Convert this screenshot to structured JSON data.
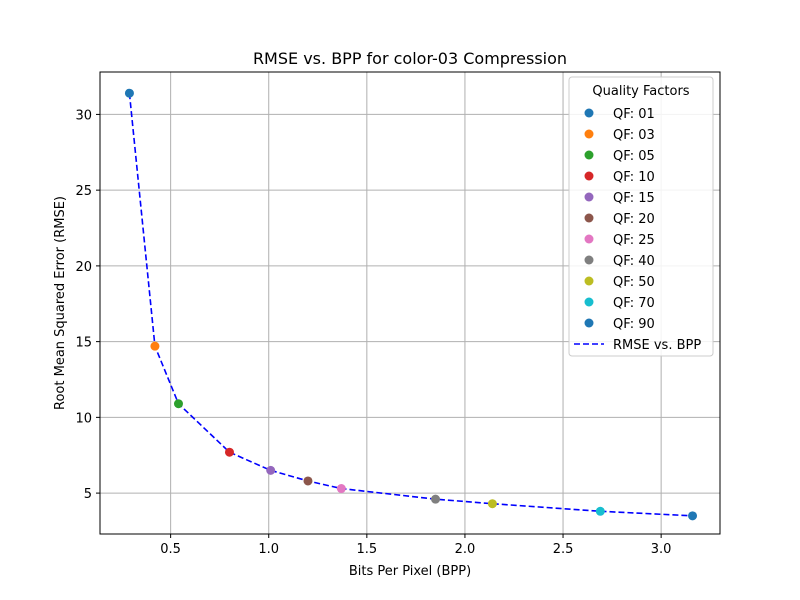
{
  "chart_data": {
    "type": "scatter",
    "title": "RMSE vs. BPP for color-03 Compression",
    "xlabel": "Bits Per Pixel (BPP)",
    "ylabel": "Root Mean Squared Error (RMSE)",
    "xlim": [
      0.14,
      3.3
    ],
    "ylim": [
      2.3,
      32.8
    ],
    "xticks": [
      0.5,
      1.0,
      1.5,
      2.0,
      2.5,
      3.0
    ],
    "xtick_labels": [
      "0.5",
      "1.0",
      "1.5",
      "2.0",
      "2.5",
      "3.0"
    ],
    "yticks": [
      5,
      10,
      15,
      20,
      25,
      30
    ],
    "ytick_labels": [
      "5",
      "10",
      "15",
      "20",
      "25",
      "30"
    ],
    "grid": true,
    "legend_title": "Quality Factors",
    "legend_position": "top-right",
    "series": [
      {
        "name": "QF: 01",
        "color": "#1f77b4",
        "x": 0.29,
        "y": 31.4
      },
      {
        "name": "QF: 03",
        "color": "#ff7f0e",
        "x": 0.42,
        "y": 14.7
      },
      {
        "name": "QF: 05",
        "color": "#2ca02c",
        "x": 0.54,
        "y": 10.9
      },
      {
        "name": "QF: 10",
        "color": "#d62728",
        "x": 0.8,
        "y": 7.7
      },
      {
        "name": "QF: 15",
        "color": "#9467bd",
        "x": 1.01,
        "y": 6.5
      },
      {
        "name": "QF: 20",
        "color": "#8c564b",
        "x": 1.2,
        "y": 5.8
      },
      {
        "name": "QF: 25",
        "color": "#e377c2",
        "x": 1.37,
        "y": 5.3
      },
      {
        "name": "QF: 40",
        "color": "#7f7f7f",
        "x": 1.85,
        "y": 4.6
      },
      {
        "name": "QF: 50",
        "color": "#bcbd22",
        "x": 2.14,
        "y": 4.3
      },
      {
        "name": "QF: 70",
        "color": "#17becf",
        "x": 2.69,
        "y": 3.8
      },
      {
        "name": "QF: 90",
        "color": "#1f77b4",
        "x": 3.16,
        "y": 3.5
      }
    ],
    "line": {
      "name": "RMSE vs. BPP",
      "color": "#0000ff",
      "style": "dashed"
    }
  }
}
